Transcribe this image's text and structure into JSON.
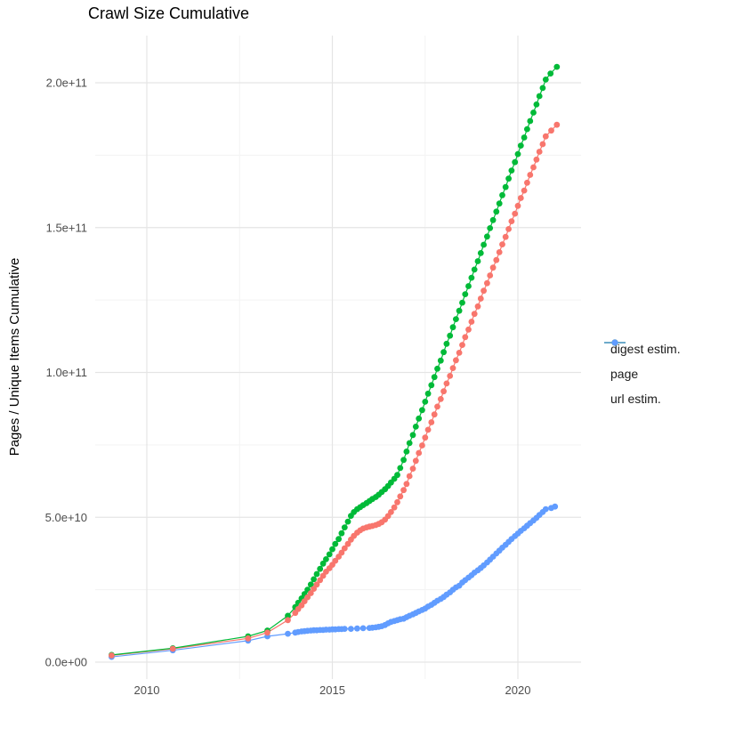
{
  "chart_data": {
    "type": "scatter",
    "title": "Crawl Size Cumulative",
    "xlabel": "",
    "ylabel": "Pages / Unique Items Cumulative",
    "values_unit": "value × 1e9 pages/items",
    "x_range_visible": [
      2008.6,
      2021.7
    ],
    "y_range_visible": [
      0,
      216
    ],
    "grid": "major and minor, light gray on white",
    "legend_position": "right",
    "x_ticks": [
      {
        "year": 2010,
        "label": "2010"
      },
      {
        "year": 2015,
        "label": "2015"
      },
      {
        "year": 2020,
        "label": "2020"
      }
    ],
    "x_minor_gridlines": [
      2012.5,
      2017.5
    ],
    "y_ticks": [
      {
        "value": 0,
        "label": "0.0e+00"
      },
      {
        "value": 50,
        "label": "5.0e+10"
      },
      {
        "value": 100,
        "label": "1.0e+11"
      },
      {
        "value": 150,
        "label": "1.5e+11"
      },
      {
        "value": 200,
        "label": "2.0e+11"
      }
    ],
    "y_minor_gridlines": [
      25,
      75,
      125,
      175
    ],
    "series": [
      {
        "id": "digest",
        "label": "digest estim.",
        "color": "#F8766D",
        "points": [
          [
            2009.05,
            2.3
          ],
          [
            2010.7,
            4.6
          ],
          [
            2012.73,
            8.2
          ],
          [
            2013.25,
            10.2
          ],
          [
            2013.8,
            14.5
          ],
          [
            2014.0,
            17
          ],
          [
            2014.08,
            18.3
          ],
          [
            2014.17,
            19.6
          ],
          [
            2014.25,
            21
          ],
          [
            2014.33,
            22.4
          ],
          [
            2014.42,
            23.8
          ],
          [
            2014.5,
            25.3
          ],
          [
            2014.58,
            26.8
          ],
          [
            2014.67,
            28.3
          ],
          [
            2014.75,
            29.8
          ],
          [
            2014.83,
            31.2
          ],
          [
            2014.92,
            32.4
          ],
          [
            2015.0,
            33.6
          ],
          [
            2015.08,
            35
          ],
          [
            2015.17,
            36.4
          ],
          [
            2015.25,
            37.8
          ],
          [
            2015.33,
            39.3
          ],
          [
            2015.42,
            40.8
          ],
          [
            2015.5,
            42.3
          ],
          [
            2015.58,
            43.6
          ],
          [
            2015.67,
            44.7
          ],
          [
            2015.75,
            45.5
          ],
          [
            2015.83,
            46.1
          ],
          [
            2015.92,
            46.5
          ],
          [
            2016.0,
            46.8
          ],
          [
            2016.08,
            47
          ],
          [
            2016.17,
            47.3
          ],
          [
            2016.25,
            47.7
          ],
          [
            2016.33,
            48.3
          ],
          [
            2016.42,
            49.2
          ],
          [
            2016.5,
            50.4
          ],
          [
            2016.58,
            51.8
          ],
          [
            2016.67,
            53.4
          ],
          [
            2016.75,
            55.2
          ],
          [
            2016.83,
            57.2
          ],
          [
            2016.92,
            59.4
          ],
          [
            2017.0,
            61.5
          ],
          [
            2017.08,
            64.2
          ],
          [
            2017.17,
            66.8
          ],
          [
            2017.25,
            69.5
          ],
          [
            2017.33,
            72.2
          ],
          [
            2017.42,
            74.8
          ],
          [
            2017.5,
            77.5
          ],
          [
            2017.58,
            80.2
          ],
          [
            2017.67,
            82.8
          ],
          [
            2017.75,
            85.5
          ],
          [
            2017.83,
            88.2
          ],
          [
            2017.92,
            90.8
          ],
          [
            2018.0,
            93.5
          ],
          [
            2018.08,
            96.2
          ],
          [
            2018.17,
            98.8
          ],
          [
            2018.25,
            101.5
          ],
          [
            2018.33,
            104.2
          ],
          [
            2018.42,
            106.8
          ],
          [
            2018.5,
            109.5
          ],
          [
            2018.58,
            112.2
          ],
          [
            2018.67,
            114.8
          ],
          [
            2018.75,
            117.5
          ],
          [
            2018.83,
            120.2
          ],
          [
            2018.92,
            122.8
          ],
          [
            2019.0,
            125.5
          ],
          [
            2019.08,
            128.2
          ],
          [
            2019.17,
            130.8
          ],
          [
            2019.25,
            133.5
          ],
          [
            2019.33,
            136.2
          ],
          [
            2019.42,
            138.8
          ],
          [
            2019.5,
            141.5
          ],
          [
            2019.58,
            144.2
          ],
          [
            2019.67,
            146.8
          ],
          [
            2019.75,
            149.5
          ],
          [
            2019.83,
            152.2
          ],
          [
            2019.92,
            154.8
          ],
          [
            2020.0,
            157.5
          ],
          [
            2020.08,
            160.2
          ],
          [
            2020.17,
            162.8
          ],
          [
            2020.25,
            165.5
          ],
          [
            2020.33,
            168.2
          ],
          [
            2020.42,
            170.8
          ],
          [
            2020.5,
            173.5
          ],
          [
            2020.58,
            176.2
          ],
          [
            2020.67,
            178.8
          ],
          [
            2020.75,
            181.5
          ],
          [
            2020.9,
            183.5
          ],
          [
            2021.05,
            185.5
          ]
        ]
      },
      {
        "id": "page",
        "label": "page",
        "color": "#00BA38",
        "points": [
          [
            2009.05,
            2.5
          ],
          [
            2010.7,
            4.8
          ],
          [
            2012.73,
            8.9
          ],
          [
            2013.25,
            10.9
          ],
          [
            2013.8,
            16
          ],
          [
            2014.0,
            19
          ],
          [
            2014.08,
            20.5
          ],
          [
            2014.17,
            22
          ],
          [
            2014.25,
            23.5
          ],
          [
            2014.33,
            25
          ],
          [
            2014.42,
            26.8
          ],
          [
            2014.5,
            28.6
          ],
          [
            2014.58,
            30.4
          ],
          [
            2014.67,
            32.2
          ],
          [
            2014.75,
            34
          ],
          [
            2014.83,
            35.5
          ],
          [
            2014.92,
            37.2
          ],
          [
            2015.0,
            39
          ],
          [
            2015.08,
            40.8
          ],
          [
            2015.17,
            42.5
          ],
          [
            2015.25,
            44.5
          ],
          [
            2015.33,
            46.5
          ],
          [
            2015.42,
            48.5
          ],
          [
            2015.5,
            50.5
          ],
          [
            2015.58,
            51.8
          ],
          [
            2015.67,
            52.8
          ],
          [
            2015.75,
            53.5
          ],
          [
            2015.83,
            54.2
          ],
          [
            2015.92,
            54.9
          ],
          [
            2016.0,
            55.6
          ],
          [
            2016.08,
            56.3
          ],
          [
            2016.17,
            57
          ],
          [
            2016.25,
            57.8
          ],
          [
            2016.33,
            58.7
          ],
          [
            2016.42,
            59.7
          ],
          [
            2016.5,
            60.8
          ],
          [
            2016.58,
            62
          ],
          [
            2016.67,
            63.3
          ],
          [
            2016.75,
            64.6
          ],
          [
            2016.83,
            67
          ],
          [
            2016.92,
            69.8
          ],
          [
            2017.0,
            72.7
          ],
          [
            2017.08,
            75.6
          ],
          [
            2017.17,
            78.4
          ],
          [
            2017.25,
            81.3
          ],
          [
            2017.33,
            84.1
          ],
          [
            2017.42,
            87
          ],
          [
            2017.5,
            89.9
          ],
          [
            2017.58,
            92.7
          ],
          [
            2017.67,
            95.6
          ],
          [
            2017.75,
            98.4
          ],
          [
            2017.83,
            101.3
          ],
          [
            2017.92,
            104.1
          ],
          [
            2018.0,
            107
          ],
          [
            2018.08,
            109.9
          ],
          [
            2018.17,
            112.7
          ],
          [
            2018.25,
            115.6
          ],
          [
            2018.33,
            118.4
          ],
          [
            2018.42,
            121.3
          ],
          [
            2018.5,
            124.1
          ],
          [
            2018.58,
            127
          ],
          [
            2018.67,
            129.8
          ],
          [
            2018.75,
            132.7
          ],
          [
            2018.83,
            135.5
          ],
          [
            2018.92,
            138.4
          ],
          [
            2019.0,
            141.2
          ],
          [
            2019.08,
            144.1
          ],
          [
            2019.17,
            146.9
          ],
          [
            2019.25,
            149.8
          ],
          [
            2019.33,
            152.6
          ],
          [
            2019.42,
            155.5
          ],
          [
            2019.5,
            158.3
          ],
          [
            2019.58,
            161.2
          ],
          [
            2019.67,
            164
          ],
          [
            2019.75,
            166.9
          ],
          [
            2019.83,
            169.7
          ],
          [
            2019.92,
            172.6
          ],
          [
            2020.0,
            175.4
          ],
          [
            2020.08,
            178.3
          ],
          [
            2020.17,
            181.1
          ],
          [
            2020.25,
            184
          ],
          [
            2020.33,
            186.8
          ],
          [
            2020.42,
            189.7
          ],
          [
            2020.5,
            192.5
          ],
          [
            2020.58,
            195.4
          ],
          [
            2020.67,
            198.2
          ],
          [
            2020.75,
            201.1
          ],
          [
            2020.88,
            203.2
          ],
          [
            2021.05,
            205.5
          ]
        ]
      },
      {
        "id": "url",
        "label": "url estim.",
        "color": "#619CFF",
        "points": [
          [
            2009.05,
            1.8
          ],
          [
            2010.7,
            4.1
          ],
          [
            2012.73,
            7.4
          ],
          [
            2013.25,
            8.9
          ],
          [
            2013.8,
            9.8
          ],
          [
            2014.0,
            10.2
          ],
          [
            2014.08,
            10.4
          ],
          [
            2014.17,
            10.6
          ],
          [
            2014.25,
            10.7
          ],
          [
            2014.33,
            10.8
          ],
          [
            2014.42,
            10.9
          ],
          [
            2014.5,
            11
          ],
          [
            2014.58,
            11
          ],
          [
            2014.67,
            11.1
          ],
          [
            2014.75,
            11.1
          ],
          [
            2014.83,
            11.2
          ],
          [
            2014.92,
            11.2
          ],
          [
            2015.0,
            11.3
          ],
          [
            2015.08,
            11.3
          ],
          [
            2015.17,
            11.4
          ],
          [
            2015.25,
            11.4
          ],
          [
            2015.33,
            11.5
          ],
          [
            2015.5,
            11.5
          ],
          [
            2015.67,
            11.6
          ],
          [
            2015.83,
            11.7
          ],
          [
            2016.0,
            11.8
          ],
          [
            2016.08,
            11.9
          ],
          [
            2016.17,
            12
          ],
          [
            2016.25,
            12.2
          ],
          [
            2016.33,
            12.4
          ],
          [
            2016.42,
            12.8
          ],
          [
            2016.5,
            13.4
          ],
          [
            2016.58,
            13.9
          ],
          [
            2016.67,
            14.2
          ],
          [
            2016.75,
            14.5
          ],
          [
            2016.83,
            14.8
          ],
          [
            2016.92,
            15
          ],
          [
            2017.0,
            15.5
          ],
          [
            2017.08,
            16
          ],
          [
            2017.17,
            16.5
          ],
          [
            2017.25,
            17
          ],
          [
            2017.33,
            17.5
          ],
          [
            2017.42,
            18
          ],
          [
            2017.5,
            18.5
          ],
          [
            2017.58,
            19.2
          ],
          [
            2017.67,
            19.8
          ],
          [
            2017.75,
            20.5
          ],
          [
            2017.83,
            21.2
          ],
          [
            2017.92,
            21.8
          ],
          [
            2018.0,
            22.5
          ],
          [
            2018.08,
            23.3
          ],
          [
            2018.17,
            24.1
          ],
          [
            2018.25,
            25
          ],
          [
            2018.33,
            25.8
          ],
          [
            2018.42,
            26.4
          ],
          [
            2018.5,
            27.5
          ],
          [
            2018.58,
            28.3
          ],
          [
            2018.67,
            29.2
          ],
          [
            2018.75,
            30
          ],
          [
            2018.83,
            30.9
          ],
          [
            2018.92,
            31.7
          ],
          [
            2019.0,
            32.5
          ],
          [
            2019.08,
            33.4
          ],
          [
            2019.17,
            34.4
          ],
          [
            2019.25,
            35.4
          ],
          [
            2019.33,
            36.4
          ],
          [
            2019.42,
            37.5
          ],
          [
            2019.5,
            38.5
          ],
          [
            2019.58,
            39.5
          ],
          [
            2019.67,
            40.5
          ],
          [
            2019.75,
            41.5
          ],
          [
            2019.83,
            42.5
          ],
          [
            2019.92,
            43.5
          ],
          [
            2020.0,
            44.4
          ],
          [
            2020.08,
            45.3
          ],
          [
            2020.17,
            46.2
          ],
          [
            2020.25,
            47.1
          ],
          [
            2020.33,
            48
          ],
          [
            2020.42,
            48.9
          ],
          [
            2020.5,
            49.8
          ],
          [
            2020.58,
            50.8
          ],
          [
            2020.67,
            51.8
          ],
          [
            2020.75,
            52.8
          ],
          [
            2020.9,
            53.2
          ],
          [
            2021.0,
            53.7
          ]
        ]
      }
    ]
  },
  "style": {
    "background": "#ffffff",
    "major_gridline_color": "#e5e5e5",
    "minor_gridline_color": "#f3f3f3",
    "axis_text_color": "#4d4d4d",
    "title_color": "#000000"
  }
}
